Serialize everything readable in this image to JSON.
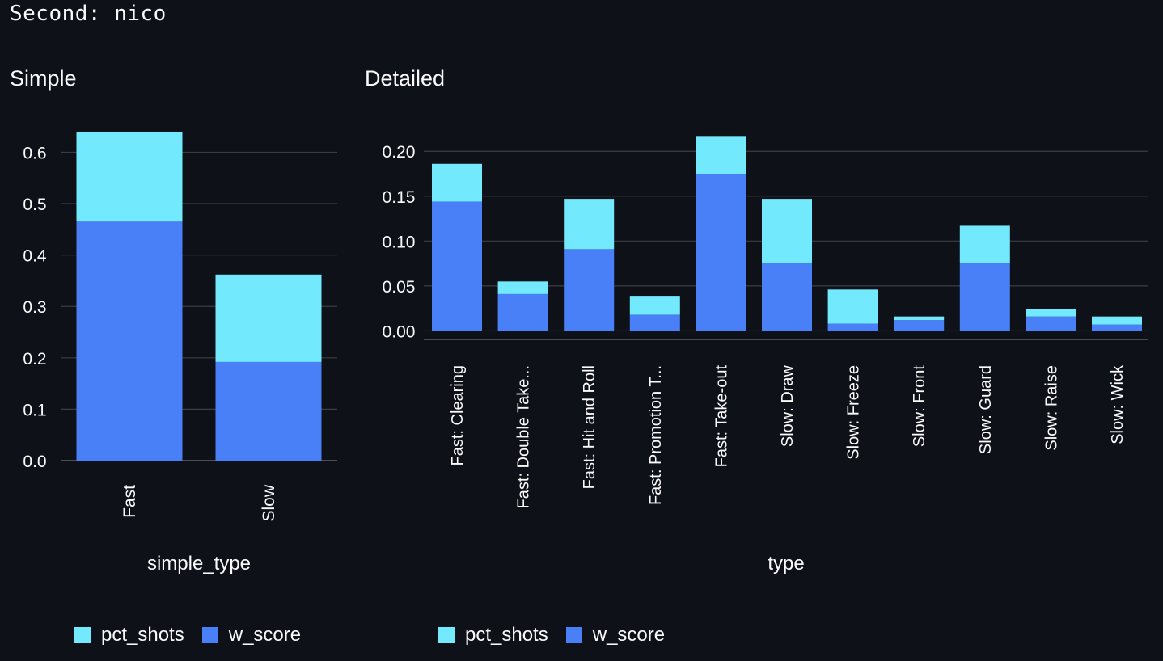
{
  "header": {
    "text": "Second: nico"
  },
  "colors": {
    "background": "#0e1117",
    "pct_shots": "#73e9fe",
    "w_score": "#4a80f7",
    "grid": "#3a3d45",
    "text": "#fafafa"
  },
  "simple": {
    "title": "Simple",
    "legend": [
      {
        "label": "pct_shots",
        "color": "#73e9fe"
      },
      {
        "label": "w_score",
        "color": "#4a80f7"
      }
    ]
  },
  "detailed": {
    "title": "Detailed",
    "legend": [
      {
        "label": "pct_shots",
        "color": "#73e9fe"
      },
      {
        "label": "w_score",
        "color": "#4a80f7"
      }
    ]
  },
  "chart_data": [
    {
      "type": "bar",
      "stacked": true,
      "title": "Simple",
      "xlabel": "simple_type",
      "ylabel": "",
      "categories": [
        "Fast",
        "Slow"
      ],
      "series": [
        {
          "name": "w_score",
          "values": [
            0.465,
            0.192
          ]
        },
        {
          "name": "pct_shots",
          "values": [
            0.175,
            0.17
          ]
        }
      ],
      "ylim": [
        0,
        0.64
      ],
      "yticks": [
        0.0,
        0.1,
        0.2,
        0.3,
        0.4,
        0.5,
        0.6
      ],
      "ytick_labels": [
        "0.0",
        "0.1",
        "0.2",
        "0.3",
        "0.4",
        "0.5",
        "0.6"
      ],
      "grid": true,
      "legend_position": "bottom-left"
    },
    {
      "type": "bar",
      "stacked": true,
      "title": "Detailed",
      "xlabel": "type",
      "ylabel": "",
      "categories": [
        "Fast: Clearing",
        "Fast: Double Take...",
        "Fast: Hit and Roll",
        "Fast: Promotion T...",
        "Fast: Take-out",
        "Slow: Draw",
        "Slow: Freeze",
        "Slow: Front",
        "Slow: Guard",
        "Slow: Raise",
        "Slow: Wick"
      ],
      "series": [
        {
          "name": "w_score",
          "values": [
            0.144,
            0.041,
            0.091,
            0.018,
            0.175,
            0.076,
            0.008,
            0.012,
            0.076,
            0.016,
            0.007
          ]
        },
        {
          "name": "pct_shots",
          "values": [
            0.042,
            0.014,
            0.056,
            0.021,
            0.042,
            0.071,
            0.038,
            0.004,
            0.041,
            0.008,
            0.009
          ]
        }
      ],
      "ylim": [
        -0.0095,
        0.22
      ],
      "yticks": [
        0.0,
        0.05,
        0.1,
        0.15,
        0.2
      ],
      "ytick_labels": [
        "0.00",
        "0.05",
        "0.10",
        "0.15",
        "0.20"
      ],
      "grid": true,
      "legend_position": "bottom-left"
    }
  ]
}
